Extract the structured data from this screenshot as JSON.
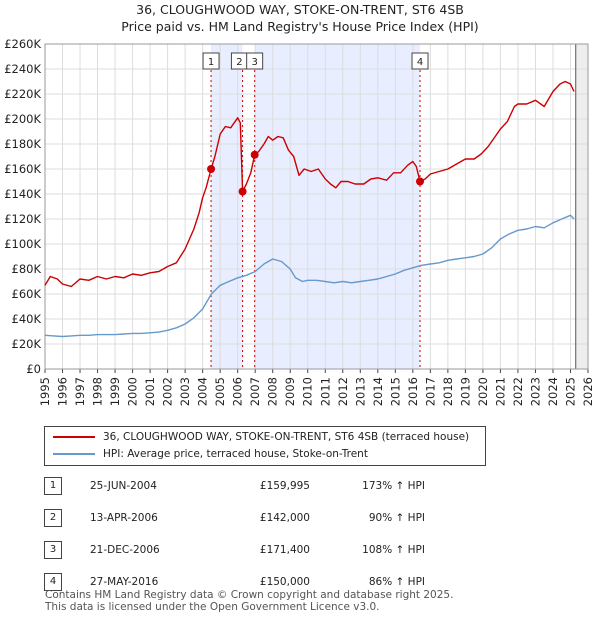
{
  "chart_data": {
    "type": "line",
    "title": "36, CLOUGHWOOD WAY, STOKE-ON-TRENT, ST6 4SB",
    "subtitle": "Price paid vs. HM Land Registry's House Price Index (HPI)",
    "xlim": [
      1995,
      2026
    ],
    "ylim": [
      0,
      260000
    ],
    "yticks": [
      0,
      20000,
      40000,
      60000,
      80000,
      100000,
      120000,
      140000,
      160000,
      180000,
      200000,
      220000,
      240000,
      260000
    ],
    "ytick_labels": [
      "£0",
      "£20K",
      "£40K",
      "£60K",
      "£80K",
      "£100K",
      "£120K",
      "£140K",
      "£160K",
      "£180K",
      "£200K",
      "£220K",
      "£240K",
      "£260K"
    ],
    "xticks": [
      1995,
      1996,
      1997,
      1998,
      1999,
      2000,
      2001,
      2002,
      2003,
      2004,
      2005,
      2006,
      2007,
      2008,
      2009,
      2010,
      2011,
      2012,
      2013,
      2014,
      2015,
      2016,
      2017,
      2018,
      2019,
      2020,
      2021,
      2022,
      2023,
      2024,
      2025,
      2026
    ],
    "xtick_labels": [
      "1995",
      "1996",
      "1997",
      "1998",
      "1999",
      "2000",
      "2001",
      "2002",
      "2003",
      "2004",
      "2005",
      "2006",
      "2007",
      "2008",
      "2009",
      "2010",
      "2011",
      "2012",
      "2013",
      "2014",
      "2015",
      "2016",
      "2017",
      "2018",
      "2019",
      "2020",
      "2021",
      "2022",
      "2023",
      "2024",
      "2025",
      "2026"
    ],
    "grid": true,
    "series": [
      {
        "name": "36, CLOUGHWOOD WAY, STOKE-ON-TRENT, ST6 4SB (terraced house)",
        "color": "#cc0000",
        "points": [
          [
            1995.0,
            67000
          ],
          [
            1995.3,
            74000
          ],
          [
            1995.7,
            72000
          ],
          [
            1996.0,
            68000
          ],
          [
            1996.5,
            66000
          ],
          [
            1997.0,
            72000
          ],
          [
            1997.5,
            71000
          ],
          [
            1998.0,
            74000
          ],
          [
            1998.5,
            72000
          ],
          [
            1999.0,
            74000
          ],
          [
            1999.5,
            73000
          ],
          [
            2000.0,
            76000
          ],
          [
            2000.5,
            75000
          ],
          [
            2001.0,
            77000
          ],
          [
            2001.5,
            78000
          ],
          [
            2002.0,
            82000
          ],
          [
            2002.5,
            85000
          ],
          [
            2003.0,
            96000
          ],
          [
            2003.5,
            112000
          ],
          [
            2003.8,
            125000
          ],
          [
            2004.0,
            137000
          ],
          [
            2004.2,
            145000
          ],
          [
            2004.48,
            159995
          ],
          [
            2004.7,
            170000
          ],
          [
            2005.0,
            188000
          ],
          [
            2005.3,
            194000
          ],
          [
            2005.6,
            193000
          ],
          [
            2005.8,
            197000
          ],
          [
            2006.0,
            201000
          ],
          [
            2006.15,
            197000
          ],
          [
            2006.28,
            142000
          ],
          [
            2006.5,
            148000
          ],
          [
            2006.75,
            157000
          ],
          [
            2006.97,
            171400
          ],
          [
            2007.2,
            174000
          ],
          [
            2007.5,
            180000
          ],
          [
            2007.75,
            186000
          ],
          [
            2008.0,
            183000
          ],
          [
            2008.3,
            186000
          ],
          [
            2008.6,
            185000
          ],
          [
            2008.9,
            175000
          ],
          [
            2009.2,
            170000
          ],
          [
            2009.5,
            155000
          ],
          [
            2009.8,
            160000
          ],
          [
            2010.2,
            158000
          ],
          [
            2010.6,
            160000
          ],
          [
            2011.0,
            152000
          ],
          [
            2011.3,
            148000
          ],
          [
            2011.6,
            145000
          ],
          [
            2011.9,
            150000
          ],
          [
            2012.3,
            150000
          ],
          [
            2012.7,
            148000
          ],
          [
            2013.2,
            148000
          ],
          [
            2013.6,
            152000
          ],
          [
            2014.0,
            153000
          ],
          [
            2014.5,
            151000
          ],
          [
            2014.9,
            157000
          ],
          [
            2015.3,
            157000
          ],
          [
            2015.7,
            163000
          ],
          [
            2016.0,
            166000
          ],
          [
            2016.2,
            162000
          ],
          [
            2016.41,
            150000
          ],
          [
            2016.7,
            152000
          ],
          [
            2017.0,
            156000
          ],
          [
            2017.5,
            158000
          ],
          [
            2018.0,
            160000
          ],
          [
            2018.5,
            164000
          ],
          [
            2019.0,
            168000
          ],
          [
            2019.5,
            168000
          ],
          [
            2019.9,
            172000
          ],
          [
            2020.3,
            178000
          ],
          [
            2020.7,
            186000
          ],
          [
            2021.0,
            192000
          ],
          [
            2021.4,
            198000
          ],
          [
            2021.8,
            210000
          ],
          [
            2022.0,
            212000
          ],
          [
            2022.5,
            212000
          ],
          [
            2023.0,
            215000
          ],
          [
            2023.5,
            210000
          ],
          [
            2024.0,
            222000
          ],
          [
            2024.4,
            228000
          ],
          [
            2024.7,
            230000
          ],
          [
            2025.0,
            228000
          ],
          [
            2025.2,
            222000
          ]
        ]
      },
      {
        "name": "HPI: Average price, terraced house, Stoke-on-Trent",
        "color": "#6699cc",
        "points": [
          [
            1995.0,
            27000
          ],
          [
            1995.5,
            26500
          ],
          [
            1996.0,
            26000
          ],
          [
            1996.5,
            26500
          ],
          [
            1997.0,
            27000
          ],
          [
            1997.5,
            27000
          ],
          [
            1998.0,
            27500
          ],
          [
            1998.5,
            27500
          ],
          [
            1999.0,
            27500
          ],
          [
            1999.5,
            28000
          ],
          [
            2000.0,
            28500
          ],
          [
            2000.5,
            28500
          ],
          [
            2001.0,
            29000
          ],
          [
            2001.5,
            29500
          ],
          [
            2002.0,
            31000
          ],
          [
            2002.5,
            33000
          ],
          [
            2003.0,
            36000
          ],
          [
            2003.5,
            41000
          ],
          [
            2004.0,
            48000
          ],
          [
            2004.5,
            60000
          ],
          [
            2005.0,
            67000
          ],
          [
            2005.5,
            70000
          ],
          [
            2006.0,
            73000
          ],
          [
            2006.5,
            75000
          ],
          [
            2007.0,
            78000
          ],
          [
            2007.5,
            84000
          ],
          [
            2008.0,
            88000
          ],
          [
            2008.5,
            86000
          ],
          [
            2009.0,
            80000
          ],
          [
            2009.3,
            73000
          ],
          [
            2009.7,
            70000
          ],
          [
            2010.0,
            71000
          ],
          [
            2010.5,
            71000
          ],
          [
            2011.0,
            70000
          ],
          [
            2011.5,
            69000
          ],
          [
            2012.0,
            70000
          ],
          [
            2012.5,
            69000
          ],
          [
            2013.0,
            70000
          ],
          [
            2013.5,
            71000
          ],
          [
            2014.0,
            72000
          ],
          [
            2014.5,
            74000
          ],
          [
            2015.0,
            76000
          ],
          [
            2015.5,
            79000
          ],
          [
            2016.0,
            81000
          ],
          [
            2016.5,
            83000
          ],
          [
            2017.0,
            84000
          ],
          [
            2017.5,
            85000
          ],
          [
            2018.0,
            87000
          ],
          [
            2018.5,
            88000
          ],
          [
            2019.0,
            89000
          ],
          [
            2019.5,
            90000
          ],
          [
            2020.0,
            92000
          ],
          [
            2020.5,
            97000
          ],
          [
            2021.0,
            104000
          ],
          [
            2021.5,
            108000
          ],
          [
            2022.0,
            111000
          ],
          [
            2022.5,
            112000
          ],
          [
            2023.0,
            114000
          ],
          [
            2023.5,
            113000
          ],
          [
            2024.0,
            117000
          ],
          [
            2024.5,
            120000
          ],
          [
            2025.0,
            123000
          ],
          [
            2025.2,
            120000
          ]
        ]
      }
    ],
    "annotations": [
      {
        "label": "1",
        "x": 2004.48,
        "y": 159995
      },
      {
        "label": "2",
        "x": 2006.28,
        "y": 142000
      },
      {
        "label": "3",
        "x": 2006.97,
        "y": 171400
      },
      {
        "label": "4",
        "x": 2016.41,
        "y": 150000
      }
    ],
    "shaded_spans": [
      [
        2004.48,
        2006.28
      ],
      [
        2006.97,
        2016.41
      ]
    ],
    "projection_start": 2025.3
  },
  "legend": {
    "property": "36, CLOUGHWOOD WAY, STOKE-ON-TRENT, ST6 4SB (terraced house)",
    "hpi": "HPI: Average price, terraced house, Stoke-on-Trent"
  },
  "sales": [
    {
      "num": "1",
      "date": "25-JUN-2004",
      "price": "£159,995",
      "hpi": "173% ↑ HPI"
    },
    {
      "num": "2",
      "date": "13-APR-2006",
      "price": "£142,000",
      "hpi": "90% ↑ HPI"
    },
    {
      "num": "3",
      "date": "21-DEC-2006",
      "price": "£171,400",
      "hpi": "108% ↑ HPI"
    },
    {
      "num": "4",
      "date": "27-MAY-2016",
      "price": "£150,000",
      "hpi": "86% ↑ HPI"
    }
  ],
  "footer": {
    "line1": "Contains HM Land Registry data © Crown copyright and database right 2025.",
    "line2": "This data is licensed under the Open Government Licence v3.0."
  }
}
